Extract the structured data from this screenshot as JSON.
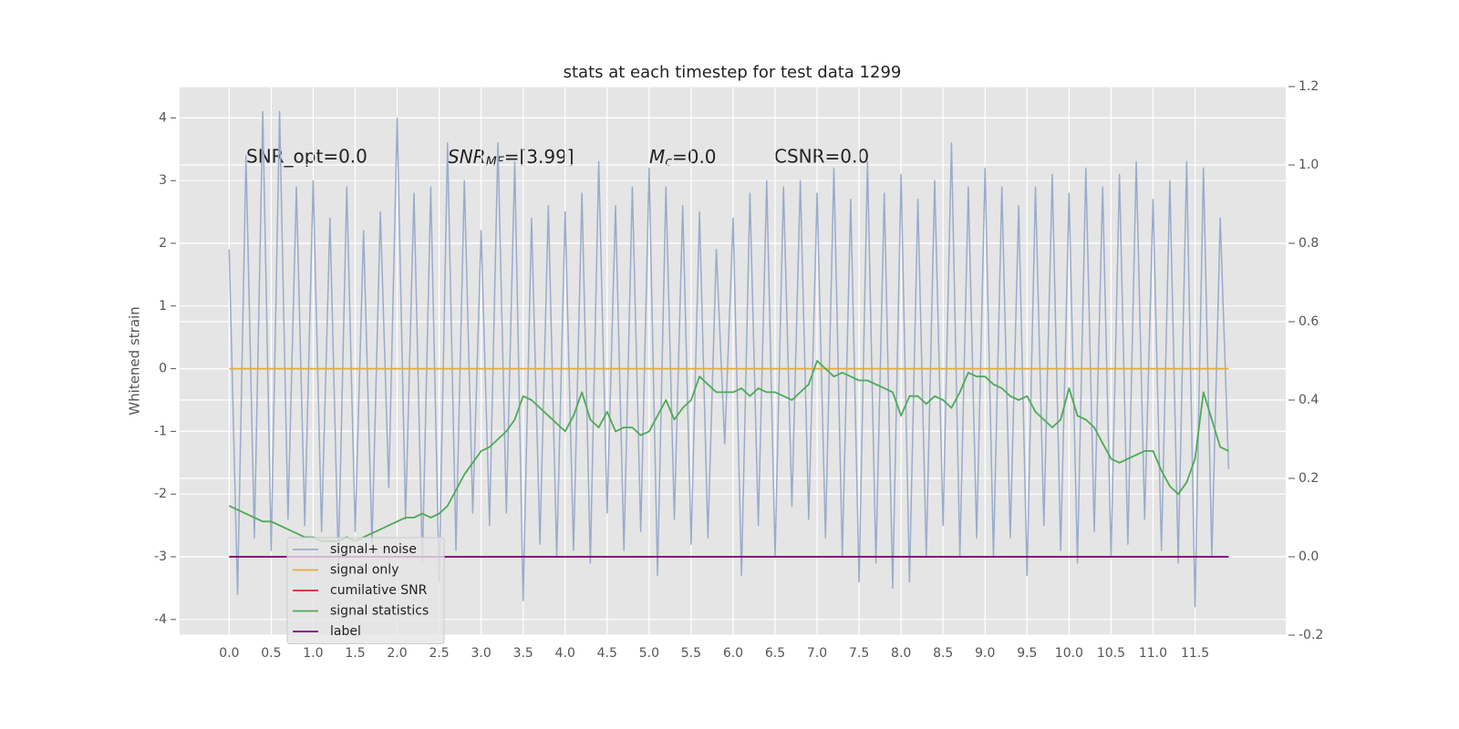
{
  "chart_data": {
    "type": "line",
    "title": "stats at each timestep for test data 1299",
    "ylabel": "Whitened strain",
    "annotations": [
      {
        "text": "SNR_opt=0.0"
      },
      {
        "base": "SNR",
        "sub": "MF",
        "rest": "=[3.99]"
      },
      {
        "base": "M",
        "sub": "c",
        "rest": "=0.0"
      },
      {
        "text": "CSNR=0.0"
      }
    ],
    "x": [
      0.0,
      0.1,
      0.2,
      0.3,
      0.4,
      0.5,
      0.6,
      0.7,
      0.8,
      0.9,
      1.0,
      1.1,
      1.2,
      1.3,
      1.4,
      1.5,
      1.6,
      1.7,
      1.8,
      1.9,
      2.0,
      2.1,
      2.2,
      2.3,
      2.4,
      2.5,
      2.6,
      2.7,
      2.8,
      2.9,
      3.0,
      3.1,
      3.2,
      3.3,
      3.4,
      3.5,
      3.6,
      3.7,
      3.8,
      3.9,
      4.0,
      4.1,
      4.2,
      4.3,
      4.4,
      4.5,
      4.6,
      4.7,
      4.8,
      4.9,
      5.0,
      5.1,
      5.2,
      5.3,
      5.4,
      5.5,
      5.6,
      5.7,
      5.8,
      5.9,
      6.0,
      6.1,
      6.2,
      6.3,
      6.4,
      6.5,
      6.6,
      6.7,
      6.8,
      6.9,
      7.0,
      7.1,
      7.2,
      7.3,
      7.4,
      7.5,
      7.6,
      7.7,
      7.8,
      7.9,
      8.0,
      8.1,
      8.2,
      8.3,
      8.4,
      8.5,
      8.6,
      8.7,
      8.8,
      8.9,
      9.0,
      9.1,
      9.2,
      9.3,
      9.4,
      9.5,
      9.6,
      9.7,
      9.8,
      9.9,
      10.0,
      10.1,
      10.2,
      10.3,
      10.4,
      10.5,
      10.6,
      10.7,
      10.8,
      10.9,
      11.0,
      11.1,
      11.2,
      11.3,
      11.4,
      11.5,
      11.6,
      11.7,
      11.8,
      11.9
    ],
    "series": [
      {
        "name": "signal+ noise",
        "color": "#9aabcb",
        "axis": "y",
        "values": [
          1.9,
          -3.6,
          3.4,
          -2.7,
          4.1,
          -2.9,
          4.1,
          -2.4,
          2.9,
          -2.5,
          3.0,
          -2.6,
          2.4,
          -3.1,
          2.9,
          -2.6,
          2.2,
          -2.8,
          2.5,
          -1.9,
          4.0,
          -2.4,
          2.8,
          -3.1,
          2.9,
          -3.4,
          3.6,
          -2.9,
          3.0,
          -2.3,
          2.2,
          -2.5,
          3.6,
          -2.3,
          3.3,
          -3.7,
          2.4,
          -2.8,
          2.6,
          -3.0,
          2.5,
          -2.9,
          2.8,
          -3.1,
          3.3,
          -2.3,
          2.6,
          -2.9,
          2.9,
          -2.6,
          3.2,
          -3.3,
          2.9,
          -2.4,
          2.6,
          -2.8,
          2.5,
          -2.7,
          1.9,
          -1.2,
          2.4,
          -3.3,
          2.8,
          -2.5,
          3.0,
          -3.0,
          2.9,
          -2.2,
          3.0,
          -2.4,
          2.8,
          -2.7,
          3.2,
          -3.0,
          2.7,
          -3.4,
          3.3,
          -3.1,
          2.8,
          -3.5,
          3.1,
          -3.4,
          2.7,
          -3.0,
          3.0,
          -2.5,
          3.6,
          -3.0,
          2.9,
          -2.7,
          3.2,
          -3.0,
          2.9,
          -2.7,
          2.6,
          -3.3,
          2.9,
          -2.5,
          3.1,
          -2.9,
          2.8,
          -3.1,
          3.2,
          -2.6,
          2.9,
          -3.0,
          3.1,
          -2.8,
          3.3,
          -2.4,
          2.7,
          -2.9,
          3.0,
          -3.1,
          3.3,
          -3.8,
          3.2,
          -3.0,
          2.4,
          -1.6
        ]
      },
      {
        "name": "signal only",
        "color": "#e5ae38",
        "axis": "y",
        "x": [
          0.0,
          11.9
        ],
        "values": [
          0,
          0
        ]
      },
      {
        "name": "cumilative SNR",
        "color": "#d62728",
        "axis": "y2",
        "x": [
          0.0,
          11.9
        ],
        "values": [
          0,
          0
        ]
      },
      {
        "name": "signal statistics",
        "color": "#4daa57",
        "axis": "y2",
        "values": [
          0.13,
          0.12,
          0.11,
          0.1,
          0.09,
          0.09,
          0.08,
          0.07,
          0.06,
          0.05,
          0.05,
          0.04,
          0.04,
          0.04,
          0.05,
          0.04,
          0.05,
          0.06,
          0.07,
          0.08,
          0.09,
          0.1,
          0.1,
          0.11,
          0.1,
          0.11,
          0.13,
          0.17,
          0.21,
          0.24,
          0.27,
          0.28,
          0.3,
          0.32,
          0.35,
          0.41,
          0.4,
          0.38,
          0.36,
          0.34,
          0.32,
          0.36,
          0.42,
          0.35,
          0.33,
          0.37,
          0.32,
          0.33,
          0.33,
          0.31,
          0.32,
          0.36,
          0.4,
          0.35,
          0.38,
          0.4,
          0.46,
          0.44,
          0.42,
          0.42,
          0.42,
          0.43,
          0.41,
          0.43,
          0.42,
          0.42,
          0.41,
          0.4,
          0.42,
          0.44,
          0.5,
          0.48,
          0.46,
          0.47,
          0.46,
          0.45,
          0.45,
          0.44,
          0.43,
          0.42,
          0.36,
          0.41,
          0.41,
          0.39,
          0.41,
          0.4,
          0.38,
          0.42,
          0.47,
          0.46,
          0.46,
          0.44,
          0.43,
          0.41,
          0.4,
          0.41,
          0.37,
          0.35,
          0.33,
          0.35,
          0.43,
          0.36,
          0.35,
          0.33,
          0.29,
          0.25,
          0.24,
          0.25,
          0.26,
          0.27,
          0.27,
          0.22,
          0.18,
          0.16,
          0.19,
          0.25,
          0.42,
          0.35,
          0.28,
          0.27
        ]
      },
      {
        "name": "label",
        "color": "#800080",
        "axis": "y2",
        "x": [
          0.0,
          11.9
        ],
        "values": [
          0,
          0
        ]
      }
    ],
    "xlim": [
      -0.59,
      12.58
    ],
    "xticks": [
      {
        "value": 0,
        "label": "0.0"
      },
      0.5,
      {
        "value": 1,
        "label": "1.0"
      },
      1.5,
      {
        "value": 2,
        "label": "2.0"
      },
      2.5,
      {
        "value": 3,
        "label": "3.0"
      },
      3.5,
      {
        "value": 4,
        "label": "4.0"
      },
      4.5,
      {
        "value": 5,
        "label": "5.0"
      },
      5.5,
      {
        "value": 6,
        "label": "6.0"
      },
      6.5,
      {
        "value": 7,
        "label": "7.0"
      },
      7.5,
      {
        "value": 8,
        "label": "8.0"
      },
      8.5,
      {
        "value": 9,
        "label": "9.0"
      },
      9.5,
      {
        "value": 10,
        "label": "10.0"
      },
      10.5,
      {
        "value": 11,
        "label": "11.0"
      },
      11.5
    ],
    "ylim": [
      -4.25,
      4.5
    ],
    "yticks": [
      -4,
      -3,
      -2,
      -1,
      0,
      1,
      2,
      3,
      4
    ],
    "y2lim": [
      -0.2,
      1.2
    ],
    "y2ticks": [
      -0.2,
      {
        "value": 0,
        "label": "0.0"
      },
      0.2,
      0.4,
      0.6,
      0.8,
      {
        "value": 1,
        "label": "1.0"
      },
      1.2
    ],
    "grid": true,
    "legend": "lower left"
  }
}
